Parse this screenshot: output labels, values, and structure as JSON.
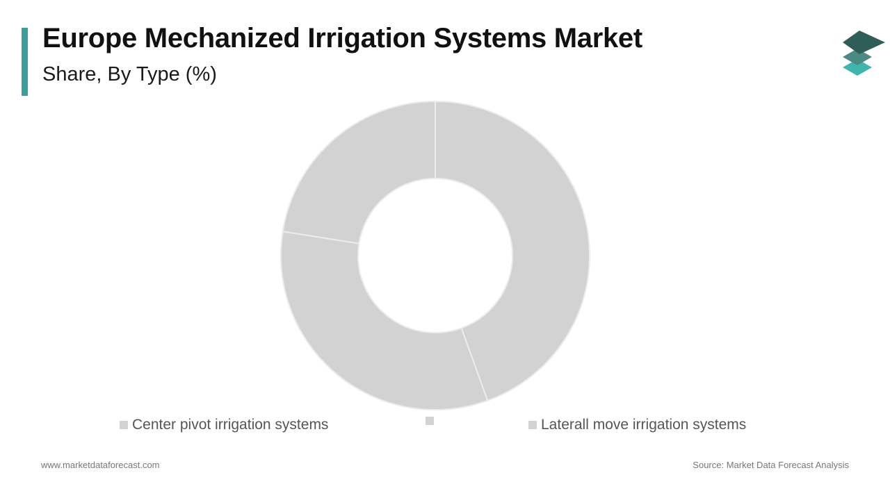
{
  "header": {
    "title": "Europe Mechanized Irrigation Systems Market",
    "subtitle": "Share, By Type (%)"
  },
  "logo": {
    "icon": "stacked-layers-icon"
  },
  "colors": {
    "accent": "#3a9e9a",
    "slice": "#d3d2d3",
    "slice_edge": "#ececec",
    "legend_swatch": "#d3d2d3",
    "logo_top": "#2e5e57",
    "logo_mid": "#4a8a82",
    "logo_bottom": "#3fb5ad"
  },
  "chart_data": {
    "type": "pie",
    "donut": true,
    "title": "Europe Mechanized Irrigation Systems Market",
    "subtitle": "Share, By Type (%)",
    "categories": [
      "Center pivot irrigation systems",
      "",
      "Laterall move irrigation systems"
    ],
    "values": [
      44.5,
      33,
      22.5
    ],
    "start": "top",
    "direction": "clockwise",
    "legend_position": "bottom",
    "data_labels": false
  },
  "footer": {
    "website": "www.marketdataforecast.com",
    "source": "Source: Market Data Forecast Analysis"
  }
}
